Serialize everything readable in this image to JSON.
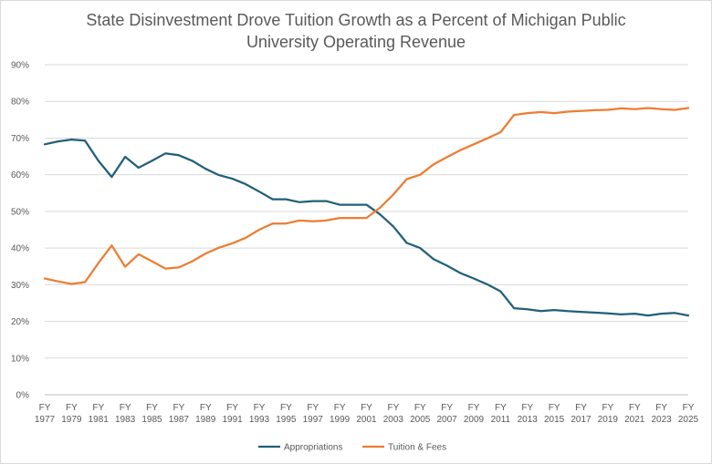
{
  "chart_data": {
    "type": "line",
    "title_line1": "State Disinvestment Drove Tuition Growth as a Percent of Michigan Public",
    "title_line2": "University Operating Revenue",
    "xlabel": "",
    "ylabel": "",
    "ylim": [
      0,
      90
    ],
    "y_ticks": [
      "0%",
      "10%",
      "20%",
      "30%",
      "40%",
      "50%",
      "60%",
      "70%",
      "80%",
      "90%"
    ],
    "x_tick_labels": [
      [
        "FY",
        "1977"
      ],
      [
        "FY",
        "1979"
      ],
      [
        "FY",
        "1981"
      ],
      [
        "FY",
        "1983"
      ],
      [
        "FY",
        "1985"
      ],
      [
        "FY",
        "1987"
      ],
      [
        "FY",
        "1989"
      ],
      [
        "FY",
        "1991"
      ],
      [
        "FY",
        "1993"
      ],
      [
        "FY",
        "1995"
      ],
      [
        "FY",
        "1997"
      ],
      [
        "FY",
        "1999"
      ],
      [
        "FY",
        "2001"
      ],
      [
        "FY",
        "2003"
      ],
      [
        "FY",
        "2005"
      ],
      [
        "FY",
        "2007"
      ],
      [
        "FY",
        "2009"
      ],
      [
        "FY",
        "2011"
      ],
      [
        "FY",
        "2013"
      ],
      [
        "FY",
        "2015"
      ],
      [
        "FY",
        "2017"
      ],
      [
        "FY",
        "2019"
      ],
      [
        "FY",
        "2021"
      ],
      [
        "FY",
        "2023"
      ],
      [
        "FY",
        "2025"
      ]
    ],
    "x": [
      1977,
      1978,
      1979,
      1980,
      1981,
      1982,
      1983,
      1984,
      1985,
      1986,
      1987,
      1988,
      1989,
      1990,
      1991,
      1992,
      1993,
      1994,
      1995,
      1996,
      1997,
      1998,
      1999,
      2000,
      2001,
      2002,
      2003,
      2004,
      2005,
      2006,
      2007,
      2008,
      2009,
      2010,
      2011,
      2012,
      2013,
      2014,
      2015,
      2016,
      2017,
      2018,
      2019,
      2020,
      2021,
      2022,
      2023,
      2024,
      2025
    ],
    "grid": true,
    "legend_position": "bottom",
    "series": [
      {
        "name": "Appropriations",
        "color": "#215f7a",
        "values": [
          68.3,
          69.1,
          69.6,
          69.3,
          63.8,
          59.4,
          64.9,
          61.9,
          63.8,
          65.8,
          65.3,
          63.8,
          61.6,
          59.9,
          58.9,
          57.4,
          55.4,
          53.3,
          53.3,
          52.5,
          52.8,
          52.8,
          51.8,
          51.8,
          51.8,
          49.2,
          45.9,
          41.4,
          40.0,
          37.0,
          35.2,
          33.2,
          31.7,
          30.1,
          28.2,
          23.6,
          23.3,
          22.8,
          23.1,
          22.8,
          22.6,
          22.4,
          22.2,
          21.9,
          22.1,
          21.6,
          22.1,
          22.3,
          21.6
        ]
      },
      {
        "name": "Tuition & Fees",
        "color": "#ed7d31",
        "values": [
          31.7,
          30.9,
          30.2,
          30.7,
          35.9,
          40.7,
          34.9,
          38.3,
          36.4,
          34.4,
          34.7,
          36.4,
          38.5,
          40.1,
          41.3,
          42.8,
          45.0,
          46.7,
          46.7,
          47.5,
          47.3,
          47.5,
          48.2,
          48.2,
          48.2,
          51.0,
          54.6,
          58.8,
          60.0,
          62.8,
          64.8,
          66.7,
          68.3,
          69.9,
          71.6,
          76.3,
          76.8,
          77.1,
          76.8,
          77.2,
          77.4,
          77.6,
          77.7,
          78.1,
          77.9,
          78.2,
          77.9,
          77.7,
          78.2
        ]
      }
    ]
  }
}
